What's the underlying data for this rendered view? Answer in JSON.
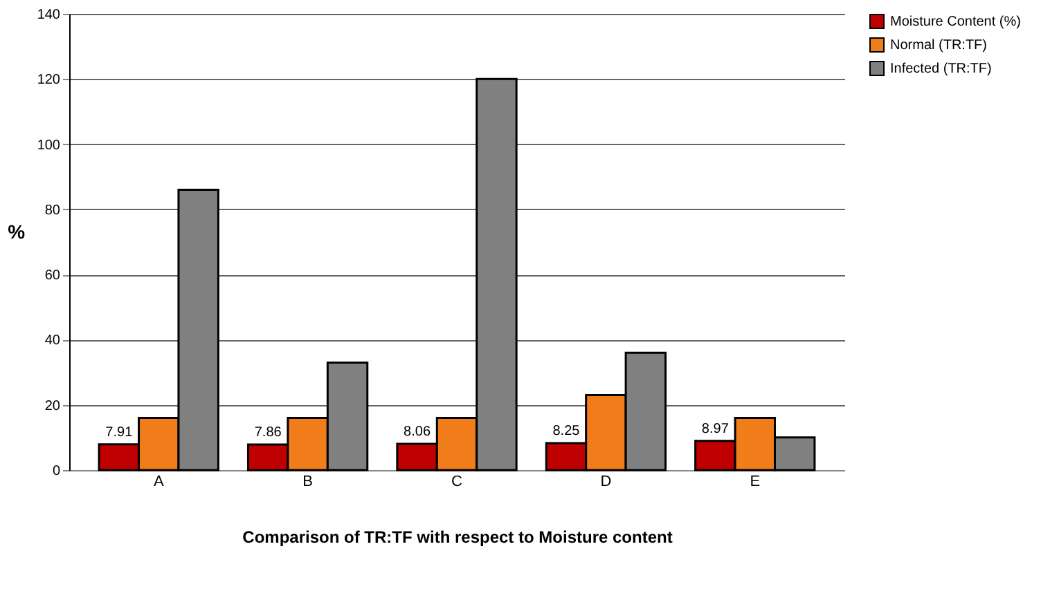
{
  "chart_data": {
    "type": "bar",
    "xlabel": "Comparison of TR:TF with respect to Moisture content",
    "ylabel": "%",
    "categories": [
      "A",
      "B",
      "C",
      "D",
      "E"
    ],
    "series": [
      {
        "name": "Moisture Content (%)",
        "color": "#c00000",
        "values": [
          7.91,
          7.86,
          8.06,
          8.25,
          8.97
        ],
        "value_labels": [
          "7.91",
          "7.86",
          "8.06",
          "8.25",
          "8.97"
        ]
      },
      {
        "name": "Normal  (TR:TF)",
        "color": "#f07c1a",
        "values": [
          16,
          16,
          16,
          23,
          16
        ]
      },
      {
        "name": "Infected  (TR:TF)",
        "color": "#808080",
        "values": [
          86,
          33,
          120,
          36,
          10
        ]
      }
    ],
    "ylim": [
      0,
      140
    ],
    "yticks": [
      0,
      20,
      40,
      60,
      80,
      100,
      120,
      140
    ],
    "grid": "y",
    "legend": "right"
  }
}
